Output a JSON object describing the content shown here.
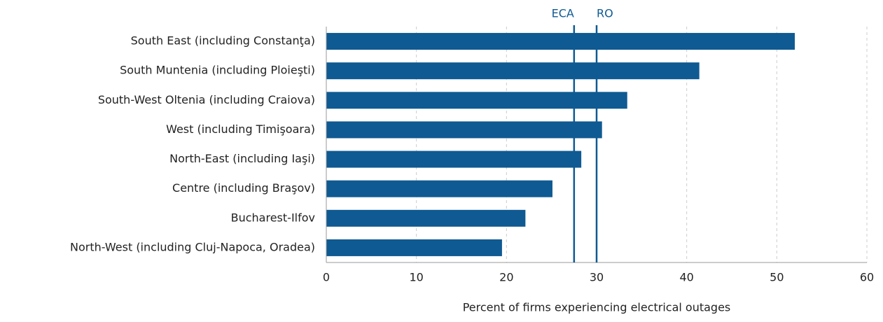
{
  "chart_data": {
    "type": "bar",
    "orientation": "horizontal",
    "categories": [
      "South East (including Constanţa)",
      "South Muntenia (including Ploieşti)",
      "South-West Oltenia (including Craiova)",
      "West (including Timişoara)",
      "North-East (including Iaşi)",
      "Centre (including Braşov)",
      "Bucharest-Ilfov",
      "North-West (including Cluj-Napoca, Oradea)"
    ],
    "values": [
      52,
      41.4,
      33.4,
      30.6,
      28.3,
      25.1,
      22.1,
      19.5
    ],
    "color": "#0f5a92",
    "xlim": [
      0,
      60
    ],
    "xticks": [
      0,
      10,
      20,
      30,
      40,
      50,
      60
    ],
    "grid": true,
    "x_label": "Percent of firms experiencing electrical outages",
    "reference_lines": [
      {
        "label": "ECA",
        "value": 27.5
      },
      {
        "label": "RO",
        "value": 30
      }
    ]
  }
}
